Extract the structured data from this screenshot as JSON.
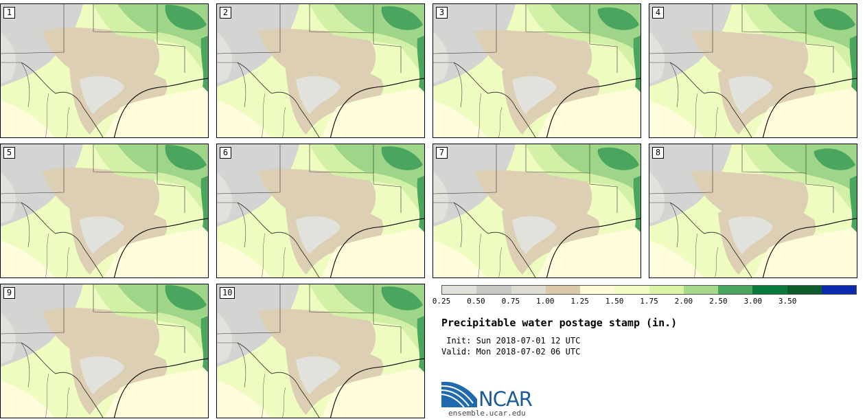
{
  "panels": [
    "1",
    "2",
    "3",
    "4",
    "5",
    "6",
    "7",
    "8",
    "9",
    "10"
  ],
  "colorbar": {
    "labels": [
      "0.25",
      "0.50",
      "0.75",
      "1.00",
      "1.25",
      "1.50",
      "1.75",
      "2.00",
      "2.50",
      "3.00",
      "3.50"
    ],
    "colors": [
      "#e2e2dc",
      "#c8c8c4",
      "#dedcd2",
      "#d9c9a9",
      "#fefcd8",
      "#f2fcc4",
      "#d9f3a5",
      "#a6d98b",
      "#4aa65e",
      "#0a7a3a",
      "#0d5a2a",
      "#0c2ab0"
    ]
  },
  "title": "Precipitable water postage stamp (in.)",
  "init": " Init: Sun 2018-07-01 12 UTC",
  "valid": "Valid: Mon 2018-07-02 06 UTC",
  "logo": {
    "text": "NCAR",
    "site": "ensemble.ucar.edu"
  },
  "map_colors": {
    "gray": "#d4d4d2",
    "lightgray": "#e2e2dc",
    "tan": "#dccfb3",
    "cream": "#fffcdc",
    "lightgreen": "#eefcc0",
    "midgreen": "#d2f0a6",
    "green": "#9fd588",
    "darkgreen": "#4aa65e"
  }
}
